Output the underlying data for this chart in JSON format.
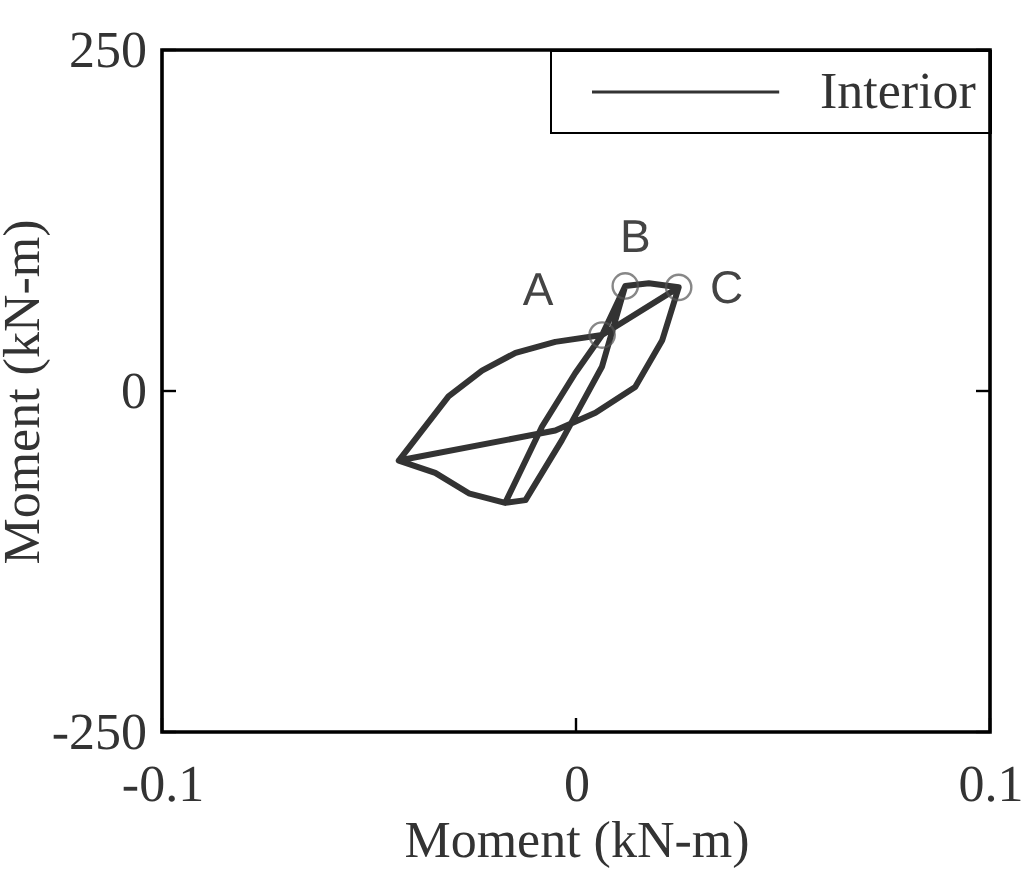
{
  "chart_data": {
    "type": "line",
    "xlabel": "Moment (kN-m)",
    "ylabel": "Moment (kN-m)",
    "xlim": [
      -0.1,
      0.1
    ],
    "ylim": [
      -250,
      250
    ],
    "xticks": [
      -0.1,
      0,
      0.1
    ],
    "yticks": [
      -250,
      0,
      250
    ],
    "series": [
      {
        "name": "Interior",
        "color": "#333333",
        "x": [
          -0.0428,
          -0.005,
          0.0047,
          0.0143,
          0.0208,
          0.0248,
          0.0176,
          0.0119,
          0.0063,
          -0.0034,
          -0.0122,
          -0.0171,
          -0.0082,
          -0.0002,
          0.0063,
          0.0119,
          0.0176,
          0.0248,
          0.0063,
          -0.005,
          -0.0146,
          -0.0227,
          -0.0308,
          -0.0372,
          -0.0428,
          -0.034,
          -0.0259,
          -0.0171
        ],
        "values": [
          -51,
          -29,
          -16,
          3,
          37,
          76,
          79,
          77,
          18,
          -36,
          -80,
          -82,
          -26,
          13,
          41,
          77,
          79,
          76,
          41,
          36,
          28,
          15,
          -4,
          -29,
          -51,
          -60,
          -75,
          -82
        ]
      }
    ],
    "annotations": [
      {
        "text": "A",
        "x": 0.0063,
        "y": 41
      },
      {
        "text": "B",
        "x": 0.0119,
        "y": 77
      },
      {
        "text": "C",
        "x": 0.0248,
        "y": 76
      }
    ],
    "legend": "top right",
    "line_style": "solid"
  }
}
